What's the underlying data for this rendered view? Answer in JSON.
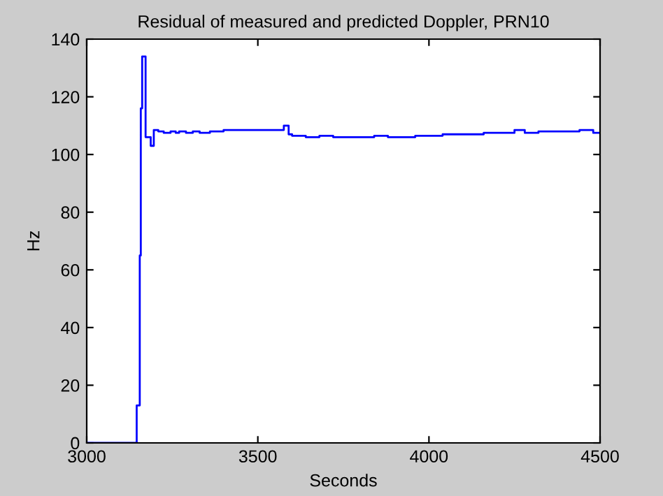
{
  "chart_data": {
    "type": "step",
    "title": "Residual of measured and predicted Doppler, PRN10",
    "xlabel": "Seconds",
    "ylabel": "Hz",
    "x": [
      3000,
      3146,
      3155,
      3158,
      3162,
      3172,
      3187,
      3196,
      3209,
      3225,
      3245,
      3260,
      3270,
      3290,
      3310,
      3330,
      3360,
      3400,
      3440,
      3480,
      3520,
      3560,
      3576,
      3590,
      3600,
      3640,
      3680,
      3720,
      3760,
      3800,
      3840,
      3880,
      3920,
      3960,
      4000,
      4040,
      4080,
      4120,
      4160,
      4200,
      4240,
      4250,
      4280,
      4320,
      4360,
      4400,
      4440,
      4480,
      4500
    ],
    "series": [
      {
        "color": "#0000ff",
        "values": [
          0,
          13,
          65,
          116,
          134,
          106,
          103,
          108.5,
          108,
          107.5,
          108,
          107.5,
          108,
          107.5,
          108,
          107.5,
          108,
          108.5,
          108.5,
          108.5,
          108.5,
          108.5,
          110,
          107,
          106.5,
          106,
          106.5,
          106,
          106,
          106,
          106.5,
          106,
          106,
          106.5,
          106.5,
          107,
          107,
          107,
          107.5,
          107.5,
          107.5,
          108.5,
          107.5,
          108,
          108,
          108,
          108.5,
          107.5,
          107.5
        ]
      }
    ],
    "xlim": [
      3000,
      4500
    ],
    "ylim": [
      0,
      140
    ],
    "xticks": [
      3000,
      3500,
      4000,
      4500
    ],
    "yticks": [
      0,
      20,
      40,
      60,
      80,
      100,
      120,
      140
    ],
    "grid": false,
    "legend": false,
    "line_style": "solid",
    "marker": "none"
  }
}
